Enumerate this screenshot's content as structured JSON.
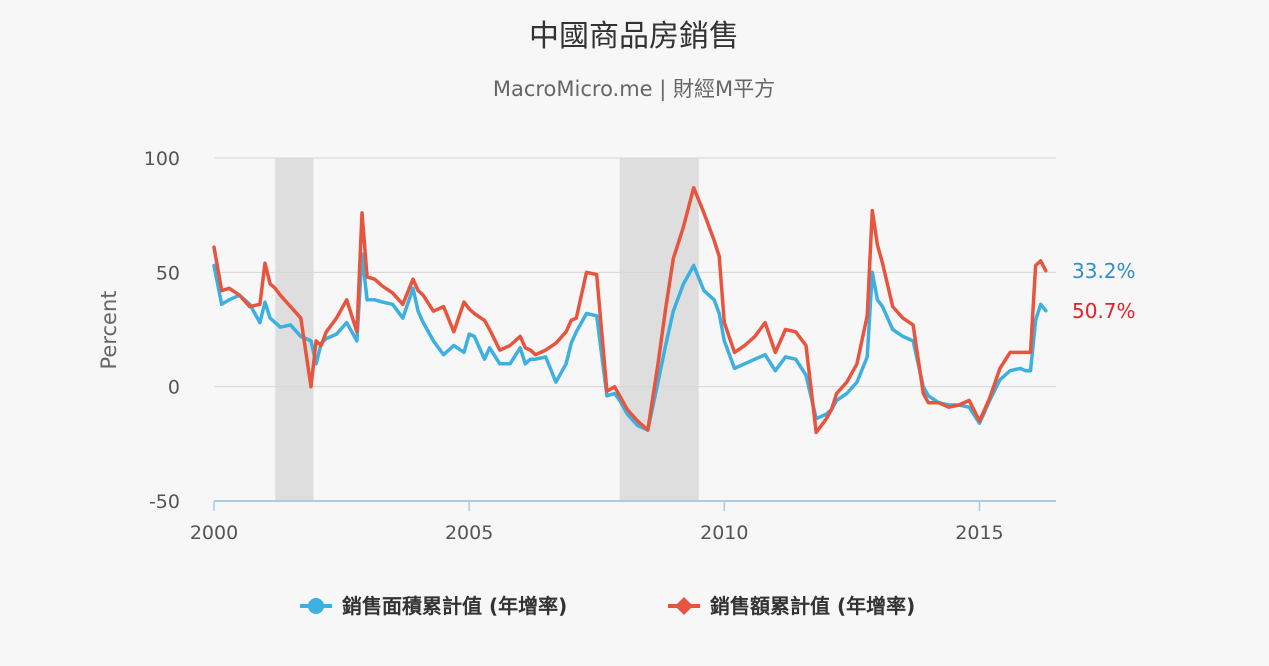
{
  "chart_data": {
    "type": "line",
    "title": "中國商品房銷售",
    "subtitle": "MacroMicro.me | 財經M平方",
    "ylabel": "Percent",
    "xlabel": "",
    "ylim": [
      -50,
      100
    ],
    "xlim": [
      2000,
      2016.5
    ],
    "yticks": [
      "100",
      "50",
      "0",
      "-50"
    ],
    "xticks": [
      "2000",
      "2005",
      "2010",
      "2015"
    ],
    "grid": true,
    "legend_position": "bottom-center",
    "recession_bands": [
      [
        2001.2,
        2001.95
      ],
      [
        2007.95,
        2009.5
      ]
    ],
    "series": [
      {
        "name": "銷售面積累計值 (年增率)",
        "color": "#3cb0e0",
        "last_label": "33.2%",
        "label_color": "#2f8fc8",
        "x": [
          2000.0,
          2000.15,
          2000.3,
          2000.5,
          2000.7,
          2000.9,
          2001.0,
          2001.1,
          2001.2,
          2001.3,
          2001.5,
          2001.7,
          2001.9,
          2002.0,
          2002.1,
          2002.2,
          2002.4,
          2002.6,
          2002.8,
          2002.9,
          2003.0,
          2003.15,
          2003.3,
          2003.5,
          2003.7,
          2003.9,
          2004.0,
          2004.1,
          2004.3,
          2004.5,
          2004.7,
          2004.9,
          2005.0,
          2005.1,
          2005.3,
          2005.4,
          2005.6,
          2005.8,
          2006.0,
          2006.1,
          2006.2,
          2006.3,
          2006.5,
          2006.7,
          2006.9,
          2007.0,
          2007.1,
          2007.3,
          2007.5,
          2007.7,
          2007.85,
          2007.95,
          2008.1,
          2008.3,
          2008.5,
          2008.7,
          2008.85,
          2009.0,
          2009.2,
          2009.4,
          2009.6,
          2009.8,
          2009.9,
          2010.0,
          2010.2,
          2010.4,
          2010.6,
          2010.8,
          2011.0,
          2011.2,
          2011.4,
          2011.6,
          2011.8,
          2012.0,
          2012.1,
          2012.2,
          2012.4,
          2012.6,
          2012.8,
          2012.9,
          2013.0,
          2013.1,
          2013.3,
          2013.5,
          2013.7,
          2013.9,
          2014.0,
          2014.2,
          2014.4,
          2014.6,
          2014.8,
          2015.0,
          2015.2,
          2015.4,
          2015.6,
          2015.8,
          2015.9,
          2016.0,
          2016.1,
          2016.2,
          2016.3
        ],
        "values": [
          53,
          36,
          38,
          40,
          36,
          28,
          37,
          30,
          28,
          26,
          27,
          22,
          20,
          10,
          19,
          21,
          23,
          28,
          20,
          58,
          38,
          38,
          37,
          36,
          30,
          43,
          33,
          28,
          20,
          14,
          18,
          15,
          23,
          22,
          12,
          17,
          10,
          10,
          17,
          10,
          12,
          12,
          13,
          2,
          10,
          19,
          24,
          32,
          31,
          -4,
          -3,
          -6,
          -12,
          -17,
          -19,
          2,
          18,
          33,
          45,
          53,
          42,
          38,
          32,
          20,
          8,
          10,
          12,
          14,
          7,
          13,
          12,
          5,
          -14,
          -12,
          -10,
          -6,
          -3,
          2,
          13,
          50,
          38,
          35,
          25,
          22,
          20,
          0,
          -4,
          -7,
          -8,
          -8,
          -9,
          -16,
          -6,
          3,
          7,
          8,
          7,
          7,
          29,
          36,
          33.2
        ]
      },
      {
        "name": "銷售額累計值 (年增率)",
        "color": "#e8553f",
        "last_label": "50.7%",
        "label_color": "#e8202a",
        "x": [
          2000.0,
          2000.15,
          2000.3,
          2000.5,
          2000.7,
          2000.9,
          2001.0,
          2001.1,
          2001.2,
          2001.3,
          2001.5,
          2001.7,
          2001.9,
          2002.0,
          2002.1,
          2002.2,
          2002.4,
          2002.6,
          2002.8,
          2002.9,
          2003.0,
          2003.15,
          2003.3,
          2003.5,
          2003.7,
          2003.9,
          2004.0,
          2004.1,
          2004.3,
          2004.5,
          2004.7,
          2004.9,
          2005.0,
          2005.1,
          2005.3,
          2005.4,
          2005.6,
          2005.8,
          2006.0,
          2006.1,
          2006.2,
          2006.3,
          2006.5,
          2006.7,
          2006.9,
          2007.0,
          2007.1,
          2007.3,
          2007.5,
          2007.7,
          2007.85,
          2007.95,
          2008.1,
          2008.3,
          2008.5,
          2008.7,
          2008.85,
          2009.0,
          2009.2,
          2009.4,
          2009.6,
          2009.8,
          2009.9,
          2010.0,
          2010.2,
          2010.4,
          2010.6,
          2010.8,
          2011.0,
          2011.2,
          2011.4,
          2011.6,
          2011.8,
          2012.0,
          2012.1,
          2012.2,
          2012.4,
          2012.6,
          2012.8,
          2012.9,
          2013.0,
          2013.1,
          2013.3,
          2013.5,
          2013.7,
          2013.9,
          2014.0,
          2014.2,
          2014.4,
          2014.6,
          2014.8,
          2015.0,
          2015.2,
          2015.4,
          2015.6,
          2015.8,
          2015.9,
          2016.0,
          2016.1,
          2016.2,
          2016.3
        ],
        "values": [
          61,
          42,
          43,
          40,
          35,
          36,
          54,
          45,
          43,
          40,
          35,
          30,
          0,
          20,
          18,
          24,
          30,
          38,
          24,
          76,
          48,
          47,
          44,
          41,
          36,
          47,
          42,
          40,
          33,
          35,
          24,
          37,
          34,
          32,
          29,
          25,
          16,
          18,
          22,
          17,
          16,
          14,
          16,
          19,
          24,
          29,
          30,
          50,
          49,
          -2,
          0,
          -4,
          -10,
          -15,
          -19,
          10,
          34,
          56,
          70,
          87,
          76,
          64,
          57,
          28,
          15,
          18,
          22,
          28,
          15,
          25,
          24,
          18,
          -20,
          -14,
          -10,
          -3,
          2,
          10,
          31,
          77,
          62,
          54,
          35,
          30,
          27,
          -3,
          -7,
          -7,
          -9,
          -8,
          -6,
          -15,
          -5,
          8,
          15,
          15,
          15,
          15,
          53,
          55,
          50.7
        ]
      }
    ]
  }
}
